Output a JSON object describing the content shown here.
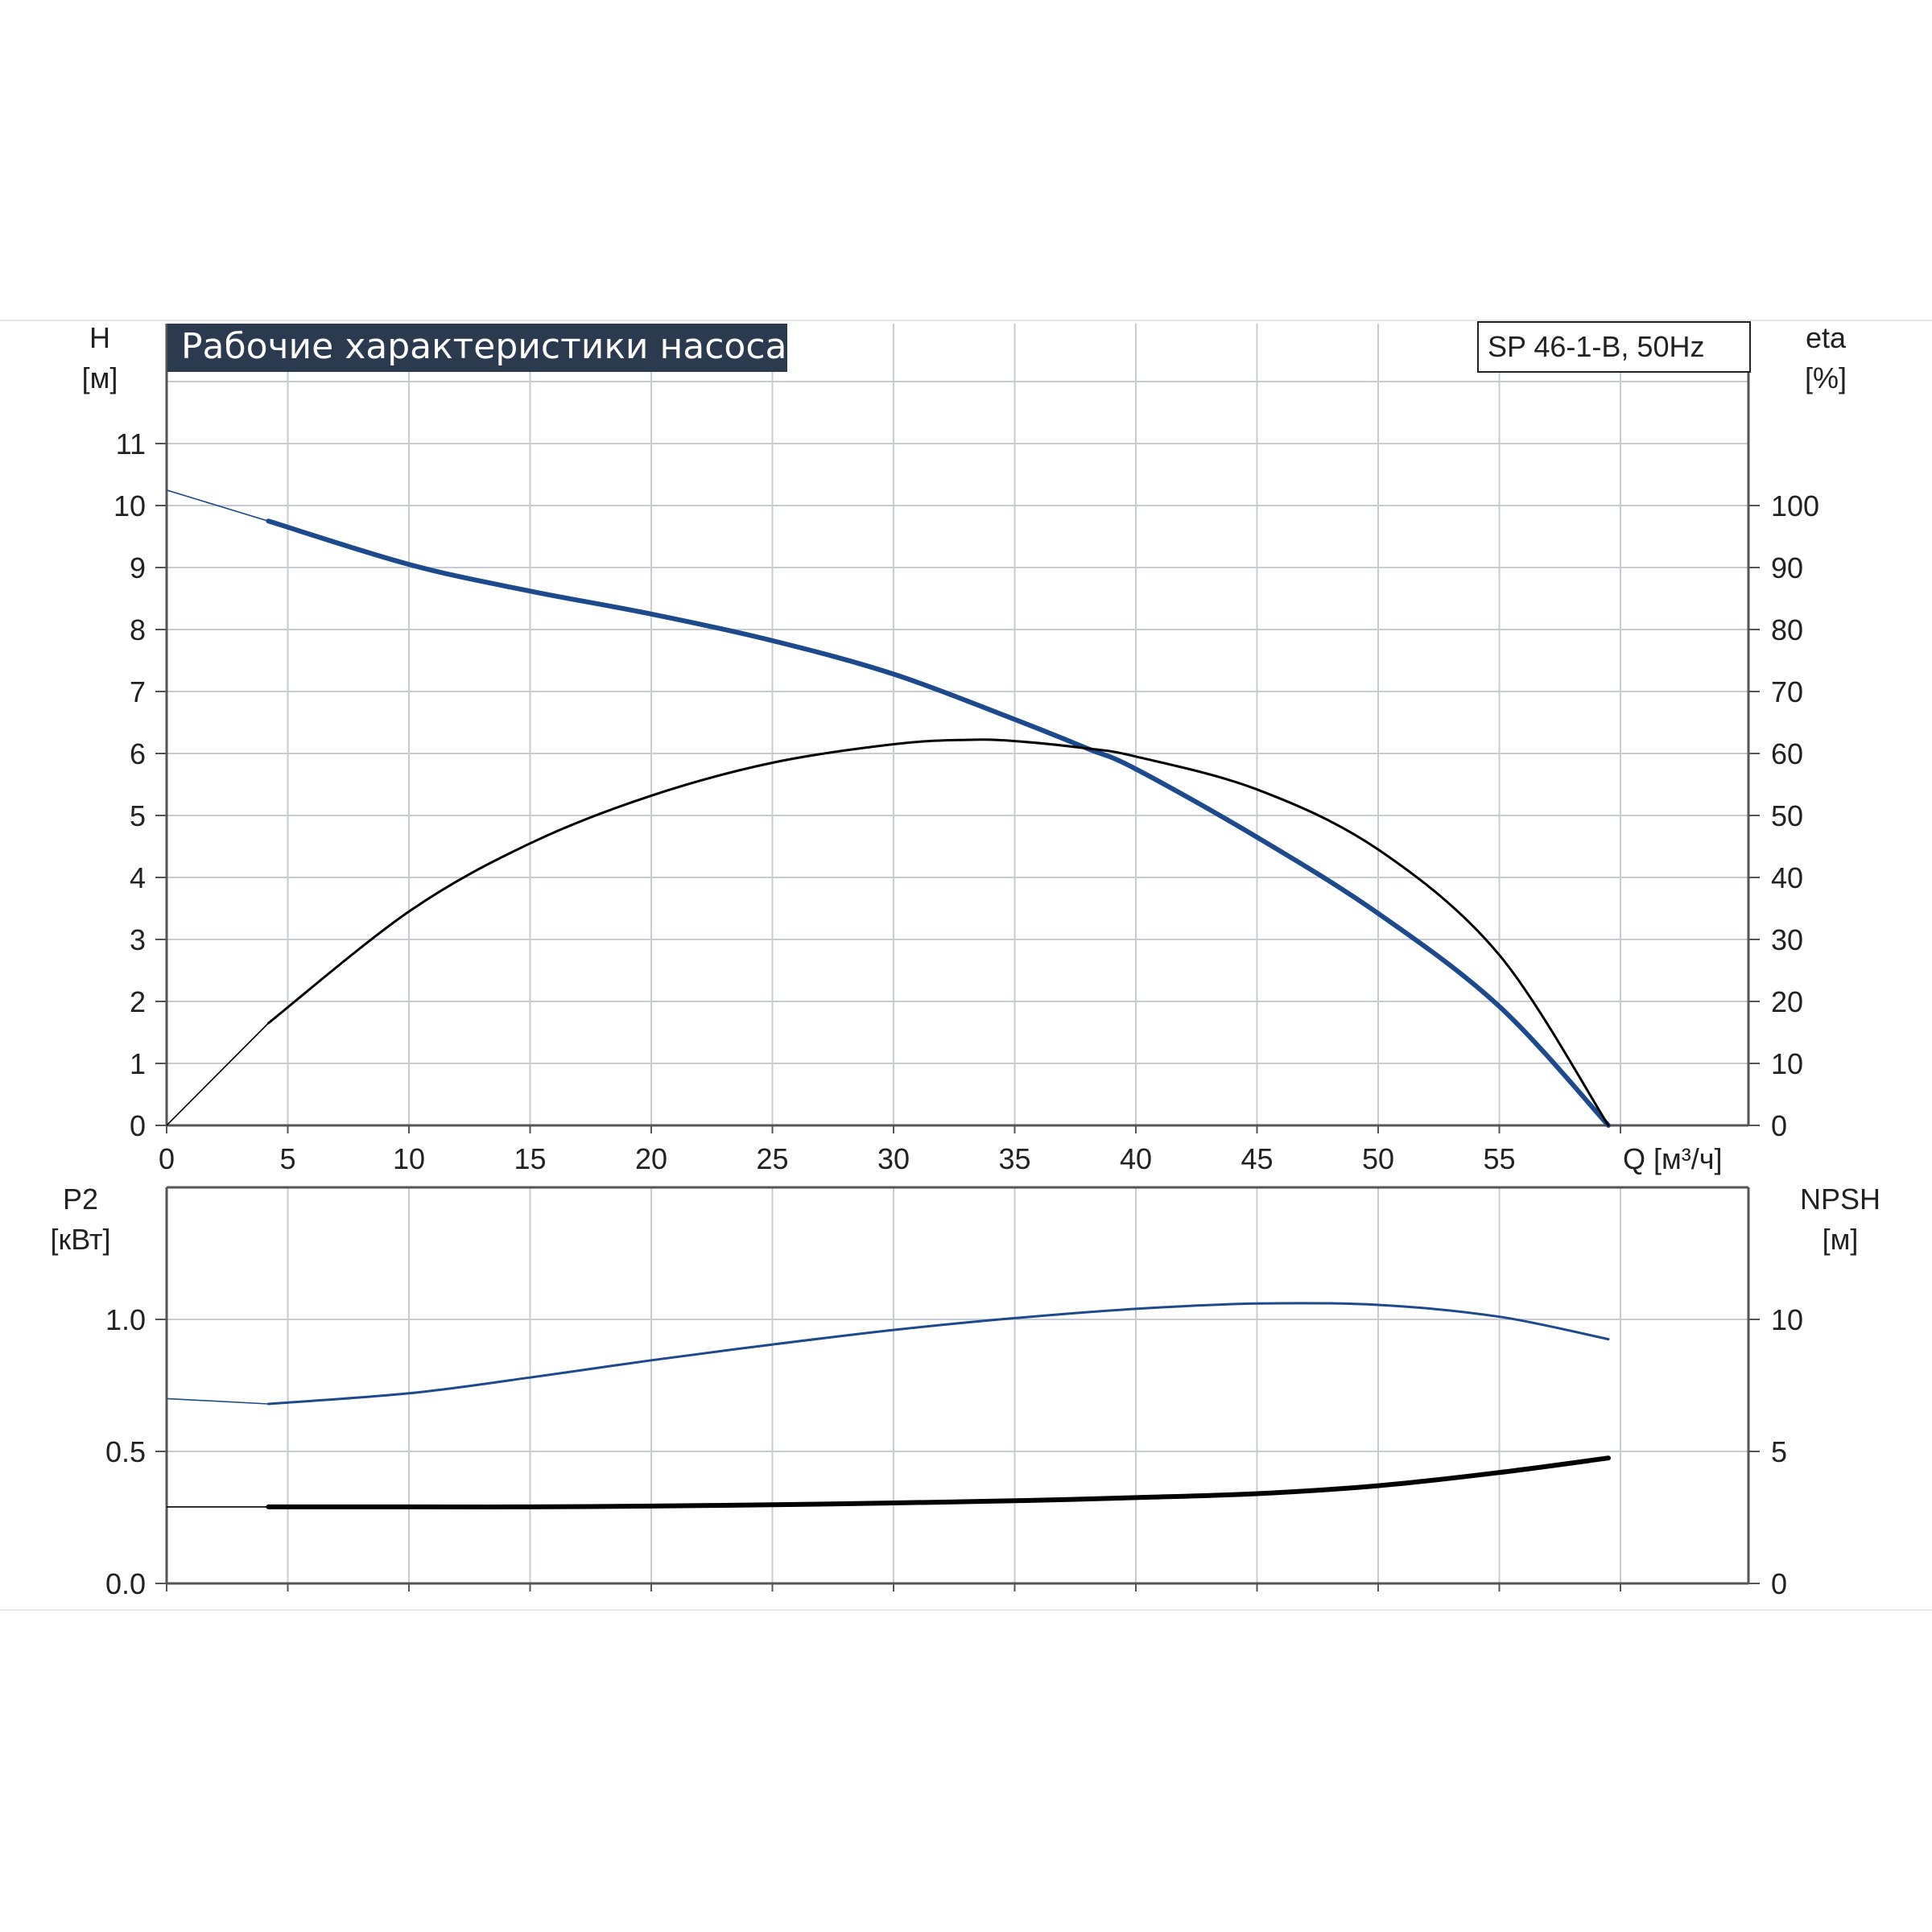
{
  "colors": {
    "blue_curve": "#1d4a8c",
    "black_curve": "#000000",
    "grid": "#c8ccd2",
    "axis": "#555555",
    "banner_bg": "#2b3a4f",
    "banner_text": "#ffffff",
    "text": "#222222",
    "frame_rule": "#e6e6e6"
  },
  "header": {
    "title": "Рабочие характеристики насоса",
    "model": "SP 46-1-B, 50Hz"
  },
  "chart_data": [
    {
      "type": "line",
      "xlabel": "Q [м³/ч]",
      "xlim": [
        0,
        60
      ],
      "x_ticks": [
        0,
        5,
        10,
        15,
        20,
        25,
        30,
        35,
        40,
        45,
        50,
        55
      ],
      "ylabel_left": {
        "name": "H",
        "unit": "[м]"
      },
      "ylim_left": [
        0,
        12
      ],
      "y_ticks_left": [
        0,
        1,
        2,
        3,
        4,
        5,
        6,
        7,
        8,
        9,
        10,
        11
      ],
      "ylabel_right": {
        "name": "eta",
        "unit": "[%]"
      },
      "ylim_right": [
        0,
        120
      ],
      "y_ticks_right": [
        0,
        10,
        20,
        30,
        40,
        50,
        60,
        70,
        80,
        90,
        100
      ],
      "grid": true,
      "series": [
        {
          "axis": "left",
          "color": "#1d4a8c",
          "x": [
            0,
            4.2,
            10,
            15,
            20,
            25,
            30,
            35,
            38,
            40,
            45,
            50,
            55,
            59.5
          ],
          "y": [
            10.25,
            9.75,
            9.05,
            8.62,
            8.25,
            7.82,
            7.28,
            6.55,
            6.08,
            5.75,
            4.65,
            3.42,
            1.92,
            0
          ]
        },
        {
          "axis": "right",
          "color": "#000000",
          "x": [
            0,
            4.2,
            10,
            15,
            20,
            25,
            30,
            33,
            35,
            38,
            40,
            45,
            50,
            55,
            59.5
          ],
          "y": [
            0,
            16.5,
            34.5,
            45.5,
            53.2,
            58.5,
            61.5,
            62.2,
            62.0,
            60.8,
            59.5,
            54.2,
            44.5,
            27.5,
            0
          ]
        }
      ]
    },
    {
      "type": "line",
      "xlim": [
        0,
        60
      ],
      "x_ticks": [
        0,
        5,
        10,
        15,
        20,
        25,
        30,
        35,
        40,
        45,
        50,
        55
      ],
      "ylabel_left": {
        "name": "P2",
        "unit": "[кВт]"
      },
      "ylim_left": [
        0,
        1.5
      ],
      "y_ticks_left": [
        "0.0",
        "0.5",
        "1.0"
      ],
      "ylabel_right": {
        "name": "NPSH",
        "unit": "[м]"
      },
      "ylim_right": [
        0,
        15
      ],
      "y_ticks_right": [
        "0",
        "5",
        "10"
      ],
      "grid": true,
      "series": [
        {
          "axis": "left",
          "color": "#1d4a8c",
          "x": [
            0,
            4.2,
            10,
            15,
            20,
            25,
            30,
            35,
            40,
            45,
            50,
            55,
            59.5
          ],
          "y": [
            0.7,
            0.68,
            0.72,
            0.78,
            0.845,
            0.905,
            0.96,
            1.005,
            1.04,
            1.06,
            1.055,
            1.01,
            0.925
          ]
        },
        {
          "axis": "right",
          "color": "#000000",
          "x": [
            0,
            4.2,
            10,
            15,
            20,
            25,
            30,
            35,
            40,
            45,
            50,
            55,
            59.5
          ],
          "y": [
            2.9,
            2.9,
            2.9,
            2.9,
            2.93,
            2.98,
            3.05,
            3.13,
            3.25,
            3.4,
            3.7,
            4.2,
            4.75
          ]
        }
      ]
    }
  ]
}
